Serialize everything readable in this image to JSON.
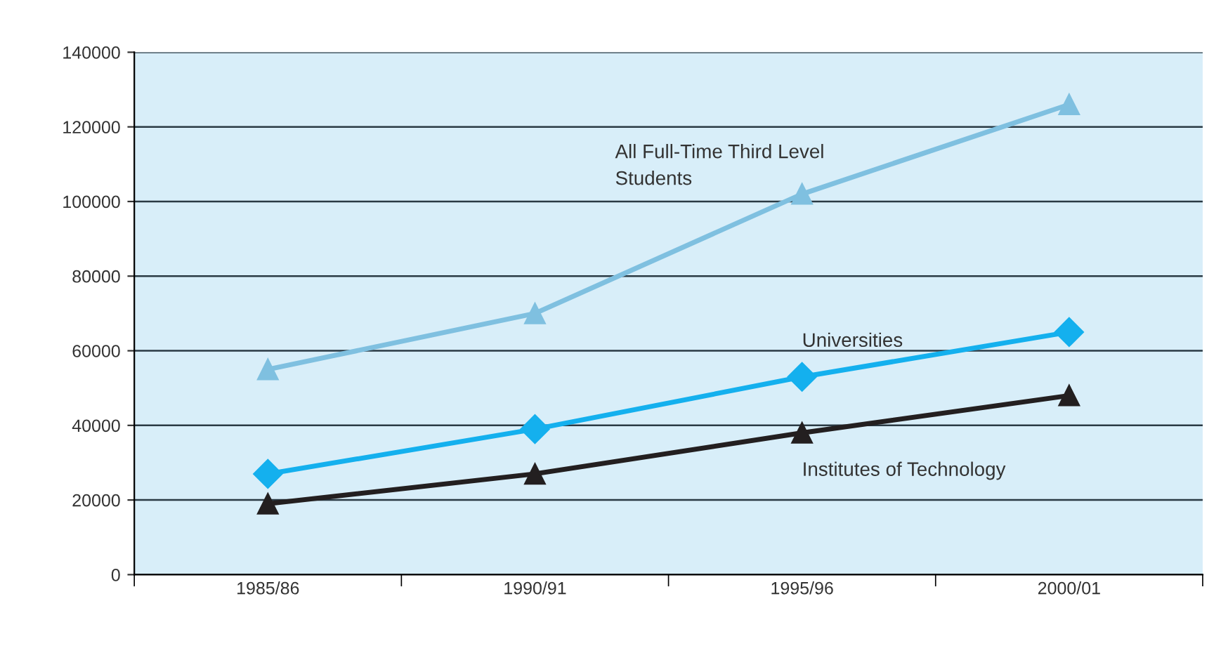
{
  "chart_data": {
    "type": "line",
    "categories": [
      "1985/86",
      "1990/91",
      "1995/96",
      "2000/01"
    ],
    "series": [
      {
        "name": "All Full-Time Third Level Students",
        "color": "#7fc0e0",
        "marker": "triangle",
        "values": [
          55000,
          70000,
          102000,
          126000
        ]
      },
      {
        "name": "Universities",
        "color": "#14b0ee",
        "marker": "diamond",
        "values": [
          27000,
          39000,
          53000,
          65000
        ]
      },
      {
        "name": "Institutes of Technology",
        "color": "#231f20",
        "marker": "triangle",
        "values": [
          19000,
          27000,
          38000,
          48000
        ]
      }
    ],
    "ylim": [
      0,
      140000
    ],
    "yticks": [
      0,
      20000,
      40000,
      60000,
      80000,
      100000,
      120000,
      140000
    ],
    "grid": "y",
    "legend": false,
    "line_style": "solid"
  }
}
